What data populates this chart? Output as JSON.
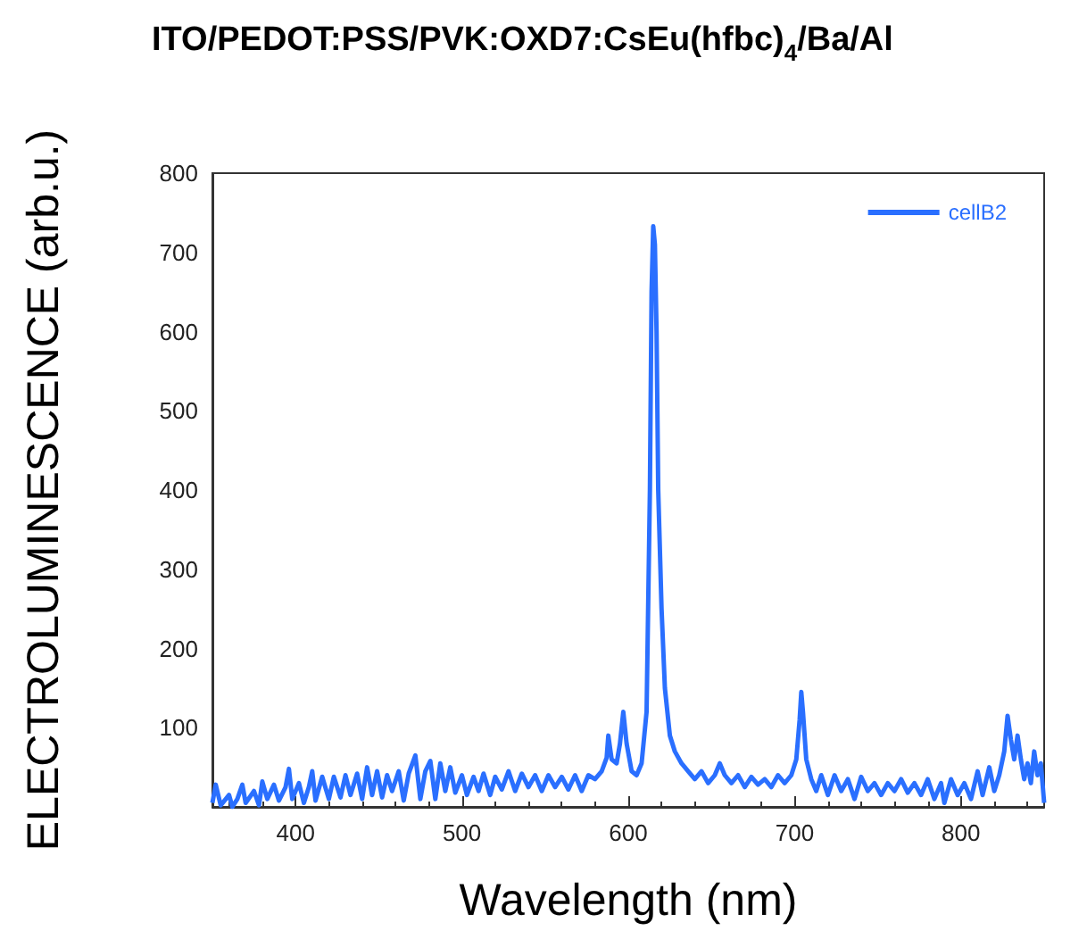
{
  "chart_data": {
    "type": "line",
    "title": "ITO/PEDOT:PSS/PVK:OXD7:CsEu(hfbc)$_{4}$/Ba/Al",
    "xlabel": "Wavelength (nm)",
    "ylabel": "ELECTROLUMINESCENCE (arb.u.)",
    "xlim": [
      350,
      850
    ],
    "xticks": [
      400,
      500,
      600,
      700,
      800
    ],
    "ylim": [
      0,
      800
    ],
    "yticks": [
      {
        "value": 0,
        "label": null
      },
      100,
      200,
      300,
      400,
      500,
      600,
      700,
      800
    ],
    "legend": "top right",
    "grid": false,
    "marker": "none",
    "line_style": "solid",
    "x": [
      350,
      352,
      355,
      360,
      362,
      365,
      368,
      370,
      375,
      378,
      380,
      383,
      387,
      390,
      394,
      396,
      398,
      402,
      405,
      408,
      410,
      412,
      416,
      420,
      423,
      427,
      430,
      433,
      437,
      440,
      443,
      446,
      449,
      452,
      455,
      458,
      462,
      465,
      468,
      472,
      475,
      478,
      481,
      484,
      487,
      490,
      493,
      496,
      500,
      503,
      507,
      510,
      513,
      517,
      520,
      524,
      528,
      532,
      536,
      540,
      544,
      548,
      552,
      556,
      560,
      564,
      568,
      572,
      576,
      580,
      584,
      587,
      588,
      590,
      593,
      595,
      597,
      599,
      602,
      605,
      608,
      611,
      613,
      614,
      615,
      616,
      617,
      618,
      620,
      622,
      625,
      628,
      632,
      636,
      640,
      644,
      648,
      652,
      655,
      658,
      662,
      666,
      670,
      674,
      678,
      682,
      686,
      690,
      694,
      698,
      701,
      703,
      704,
      705,
      707,
      710,
      713,
      716,
      720,
      724,
      728,
      732,
      736,
      740,
      744,
      748,
      752,
      756,
      760,
      764,
      768,
      772,
      776,
      780,
      784,
      788,
      790,
      794,
      798,
      802,
      806,
      810,
      813,
      817,
      820,
      823,
      826,
      828,
      830,
      832,
      834,
      836,
      838,
      840,
      842,
      844,
      846,
      848,
      850
    ],
    "series": [
      {
        "name": "cellB2",
        "color": "#2a6fff",
        "values": [
          5,
          28,
          2,
          15,
          0,
          10,
          28,
          5,
          20,
          2,
          32,
          10,
          28,
          8,
          25,
          48,
          10,
          30,
          5,
          25,
          45,
          8,
          38,
          10,
          38,
          12,
          40,
          15,
          42,
          10,
          50,
          15,
          45,
          12,
          40,
          20,
          45,
          8,
          42,
          65,
          10,
          45,
          58,
          10,
          55,
          20,
          50,
          18,
          40,
          15,
          38,
          20,
          42,
          15,
          38,
          22,
          45,
          20,
          42,
          25,
          40,
          20,
          40,
          25,
          38,
          22,
          40,
          20,
          40,
          35,
          45,
          62,
          90,
          60,
          55,
          80,
          120,
          80,
          45,
          40,
          55,
          120,
          400,
          650,
          733,
          710,
          600,
          400,
          250,
          150,
          90,
          70,
          55,
          45,
          35,
          45,
          30,
          40,
          55,
          40,
          30,
          40,
          25,
          38,
          28,
          35,
          25,
          40,
          30,
          40,
          60,
          110,
          145,
          120,
          60,
          35,
          20,
          40,
          15,
          40,
          20,
          35,
          10,
          38,
          20,
          30,
          15,
          30,
          20,
          35,
          18,
          30,
          15,
          35,
          10,
          30,
          5,
          35,
          15,
          30,
          10,
          45,
          15,
          50,
          20,
          40,
          70,
          115,
          85,
          60,
          90,
          60,
          35,
          55,
          30,
          70,
          40,
          55,
          5
        ]
      }
    ]
  }
}
